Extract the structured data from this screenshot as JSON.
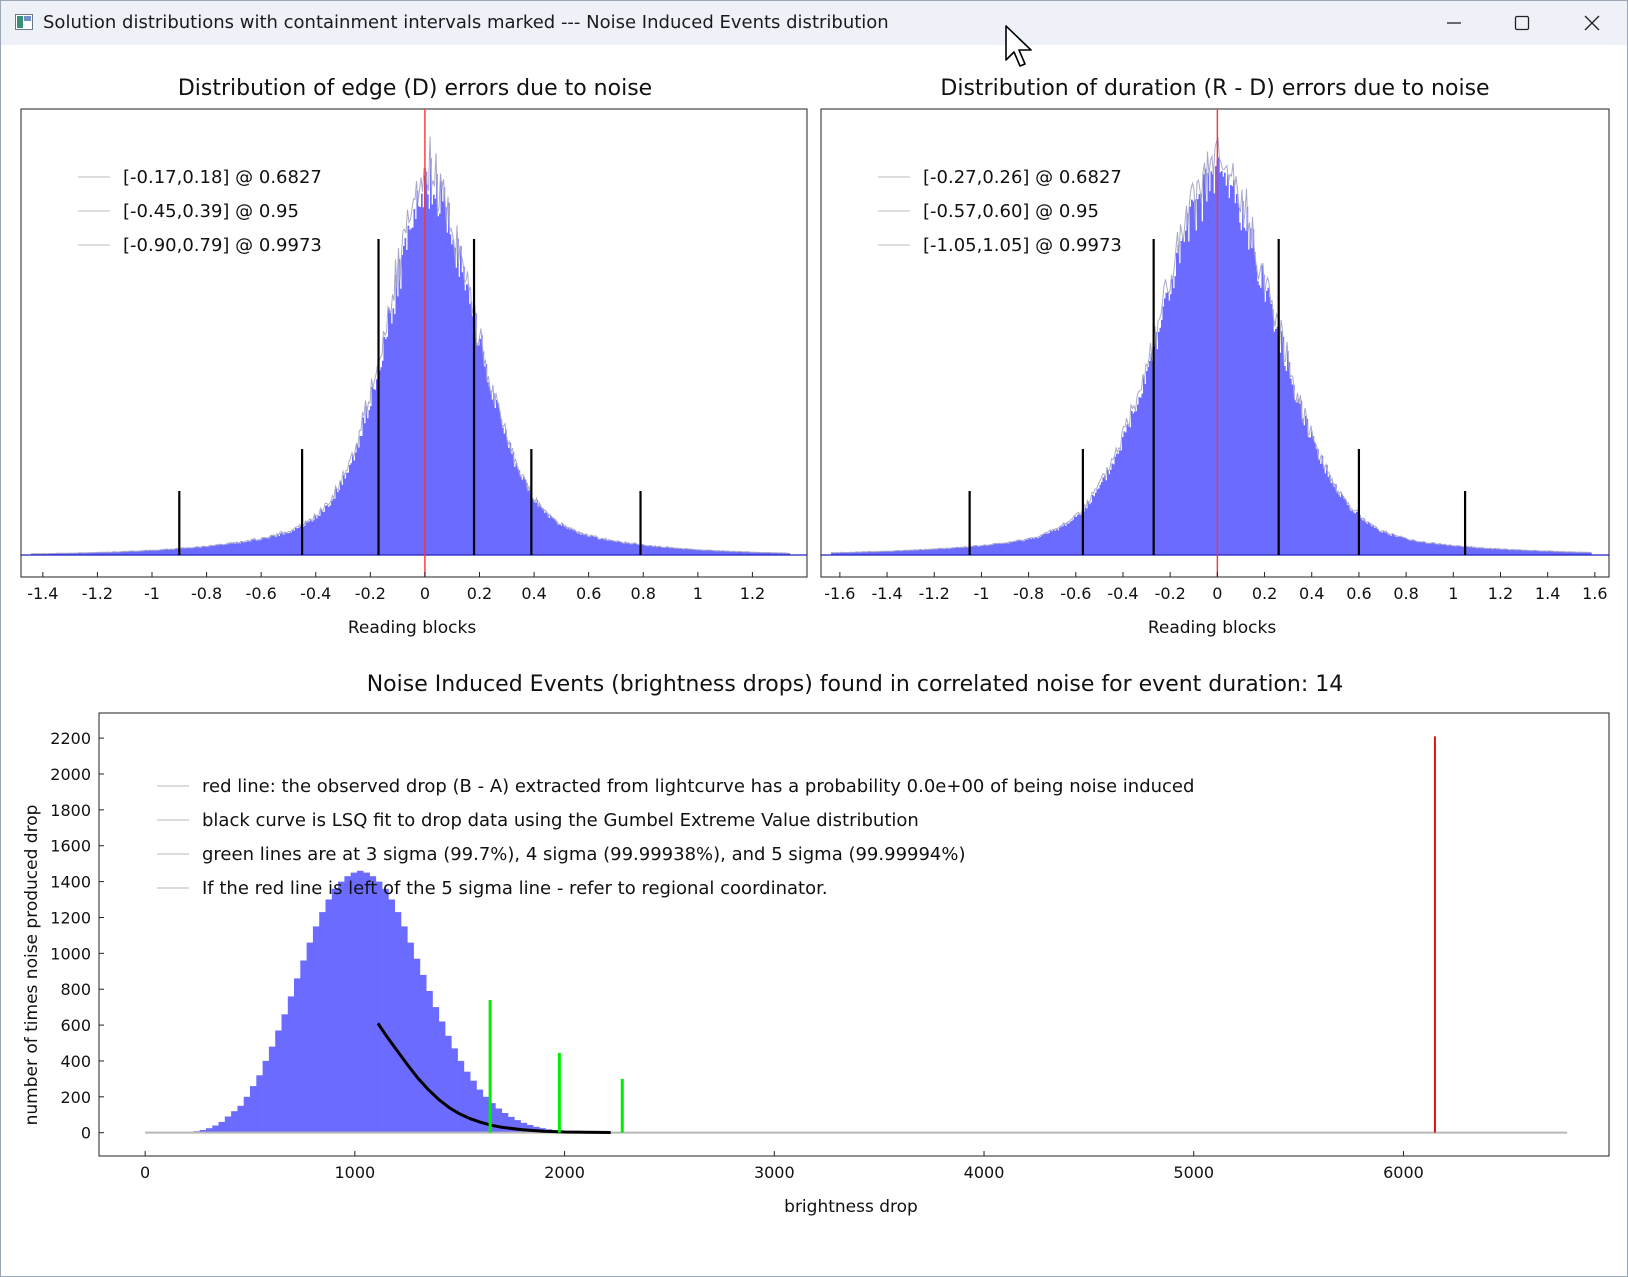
{
  "window": {
    "title": "Solution distributions with containment intervals marked --- Noise Induced Events distribution",
    "controls": {
      "minimize_label": "—",
      "maximize_label": "☐",
      "close_label": "✕"
    }
  },
  "colors": {
    "histogram": "#6b6bff",
    "histogram_edge": "#a8a8c8",
    "baseline": "#2020c0",
    "zero_line": "#ff3333",
    "interval_lines": "#000000",
    "observed_drop": "#dd1111",
    "sigma_lines": "#00ee00",
    "fit_curve": "#000000",
    "legend_line": "#d0d0d0"
  },
  "chart_data": [
    {
      "type": "bar",
      "title": "Distribution of edge (D) errors due to noise",
      "xlabel": "Reading blocks",
      "ylabel": "",
      "xlim": [
        -1.48,
        1.4
      ],
      "xticks": [
        "-1.4",
        "-1.2",
        "-1",
        "-0.8",
        "-0.6",
        "-0.4",
        "-0.2",
        "0",
        "0.2",
        "0.4",
        "0.6",
        "0.8",
        "1",
        "1.2"
      ],
      "distribution": {
        "center": 0.02,
        "sigma_left": 0.16,
        "sigma_right": 0.17,
        "tail_weight": 0.3,
        "tail_scale": 0.32
      },
      "zero_line": 0,
      "legend": [
        "[-0.17,0.18] @ 0.6827",
        "[-0.45,0.39] @ 0.95",
        "[-0.90,0.79] @ 0.9973"
      ],
      "intervals": [
        {
          "low": -0.17,
          "high": 0.18,
          "level": 0.6827
        },
        {
          "low": -0.45,
          "high": 0.39,
          "level": 0.95
        },
        {
          "low": -0.9,
          "high": 0.79,
          "level": 0.9973
        }
      ],
      "legend_placement": "top-left"
    },
    {
      "type": "bar",
      "title": "Distribution of duration (R - D) errors due to noise",
      "xlabel": "Reading blocks",
      "ylabel": "",
      "xlim": [
        -1.68,
        1.66
      ],
      "xticks": [
        "-1.6",
        "-1.4",
        "-1.2",
        "-1",
        "-0.8",
        "-0.6",
        "-0.4",
        "-0.2",
        "0",
        "0.2",
        "0.4",
        "0.6",
        "0.8",
        "1",
        "1.2",
        "1.4",
        "1.6"
      ],
      "distribution": {
        "center": 0.0,
        "sigma_left": 0.25,
        "sigma_right": 0.25,
        "tail_weight": 0.22,
        "tail_scale": 0.45
      },
      "zero_line": 0,
      "legend": [
        "[-0.27,0.26] @ 0.6827",
        "[-0.57,0.60] @ 0.95",
        "[-1.05,1.05] @ 0.9973"
      ],
      "intervals": [
        {
          "low": -0.27,
          "high": 0.26,
          "level": 0.6827
        },
        {
          "low": -0.57,
          "high": 0.6,
          "level": 0.95
        },
        {
          "low": -1.05,
          "high": 1.05,
          "level": 0.9973
        }
      ],
      "legend_placement": "top-left"
    },
    {
      "type": "bar",
      "title": "Noise Induced Events (brightness drops) found in correlated noise for event duration: 14",
      "xlabel": "brightness drop",
      "ylabel": "number of times noise produced drop",
      "xlim": [
        -220,
        6980
      ],
      "ylim": [
        -130,
        2340
      ],
      "xticks": [
        0,
        1000,
        2000,
        3000,
        4000,
        5000,
        6000
      ],
      "yticks": [
        0,
        200,
        400,
        600,
        800,
        1000,
        1200,
        1400,
        1600,
        1800,
        2000,
        2200
      ],
      "histogram": {
        "bin_start": 200,
        "bin_width": 30,
        "counts": [
          3,
          8,
          15,
          25,
          40,
          60,
          90,
          120,
          150,
          200,
          260,
          320,
          400,
          480,
          570,
          660,
          760,
          860,
          960,
          1060,
          1150,
          1230,
          1300,
          1360,
          1400,
          1430,
          1450,
          1460,
          1450,
          1430,
          1400,
          1360,
          1300,
          1230,
          1150,
          1060,
          970,
          880,
          790,
          700,
          620,
          540,
          470,
          400,
          340,
          290,
          240,
          200,
          165,
          135,
          110,
          88,
          70,
          55,
          43,
          33,
          25,
          19,
          14,
          10,
          7,
          5,
          3,
          2,
          1
        ]
      },
      "fit_curve": {
        "label": "black curve is LSQ fit to drop data using the Gumbel Extreme Value distribution",
        "x": [
          1110,
          1150,
          1200,
          1250,
          1300,
          1350,
          1400,
          1450,
          1500,
          1550,
          1600,
          1650,
          1700,
          1800,
          1900,
          2000,
          2100,
          2220
        ],
        "y": [
          610,
          540,
          460,
          380,
          305,
          240,
          185,
          140,
          105,
          78,
          58,
          42,
          30,
          16,
          8,
          4,
          2,
          1
        ]
      },
      "baseline_range": [
        0,
        6780
      ],
      "sigma_lines": [
        {
          "label": "3 sigma",
          "x": 1645,
          "height": 740
        },
        {
          "label": "4 sigma",
          "x": 1975,
          "height": 445
        },
        {
          "label": "5 sigma",
          "x": 2275,
          "height": 300
        }
      ],
      "observed_drop": {
        "x": 6150,
        "height": 2210
      },
      "legend": [
        "red line: the observed drop (B - A) extracted from lightcurve has a probability 0.0e+00 of being noise induced",
        "black curve is LSQ fit to drop data using the Gumbel Extreme Value distribution",
        "green lines are at 3 sigma (99.7%), 4 sigma (99.99938%), and 5 sigma (99.99994%)",
        "If the red line is left of the 5 sigma line - refer to regional coordinator."
      ],
      "legend_placement": "top-left"
    }
  ]
}
